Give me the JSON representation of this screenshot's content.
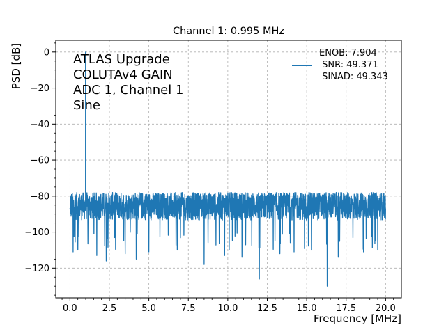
{
  "chart_data": {
    "type": "line",
    "title": "Channel 1: 0.995 MHz",
    "xlabel": "Frequency [MHz]",
    "ylabel": "PSD [dB]",
    "xlim": [
      -0.9,
      21.0
    ],
    "ylim": [
      -136.5,
      6.5
    ],
    "xticks": [
      0.0,
      2.5,
      5.0,
      7.5,
      10.0,
      12.5,
      15.0,
      17.5,
      20.0
    ],
    "xtick_labels": [
      "0.0",
      "2.5",
      "5.0",
      "7.5",
      "10.0",
      "12.5",
      "15.0",
      "17.5",
      "20.0"
    ],
    "yticks": [
      0,
      -20,
      -40,
      -60,
      -80,
      -100,
      -120
    ],
    "ytick_labels": [
      "0",
      "−20",
      "−40",
      "−60",
      "−80",
      "−100",
      "−120"
    ],
    "grid": true,
    "annotation_lines": [
      "ATLAS Upgrade",
      "COLUTAv4 GAIN",
      "ADC 1, Channel 1",
      "Sine"
    ],
    "legend": {
      "placement": "upper right",
      "lines": [
        "ENOB: 7.904",
        " SNR: 49.371",
        " SINAD: 49.343"
      ]
    },
    "series": [
      {
        "color": "#1f77b4",
        "noise_floor_db": [
          -96,
          -78
        ],
        "noise_start_db": -74,
        "peak": {
          "x": 0.995,
          "y": 0.0
        },
        "dips": [
          {
            "x": 0.2,
            "y": -111
          },
          {
            "x": 0.5,
            "y": -110
          },
          {
            "x": 1.0,
            "y": -117
          },
          {
            "x": 1.7,
            "y": -113
          },
          {
            "x": 2.3,
            "y": -116
          },
          {
            "x": 3.5,
            "y": -112
          },
          {
            "x": 4.2,
            "y": -115
          },
          {
            "x": 5.0,
            "y": -111
          },
          {
            "x": 6.8,
            "y": -110
          },
          {
            "x": 8.5,
            "y": -118
          },
          {
            "x": 9.8,
            "y": -113
          },
          {
            "x": 10.9,
            "y": -114
          },
          {
            "x": 12.0,
            "y": -126
          },
          {
            "x": 13.3,
            "y": -112
          },
          {
            "x": 14.2,
            "y": -111
          },
          {
            "x": 15.3,
            "y": -110
          },
          {
            "x": 16.3,
            "y": -130
          },
          {
            "x": 17.0,
            "y": -114
          },
          {
            "x": 18.6,
            "y": -111
          },
          {
            "x": 19.5,
            "y": -110
          }
        ],
        "x_range": [
          0.0,
          20.0
        ]
      }
    ]
  }
}
